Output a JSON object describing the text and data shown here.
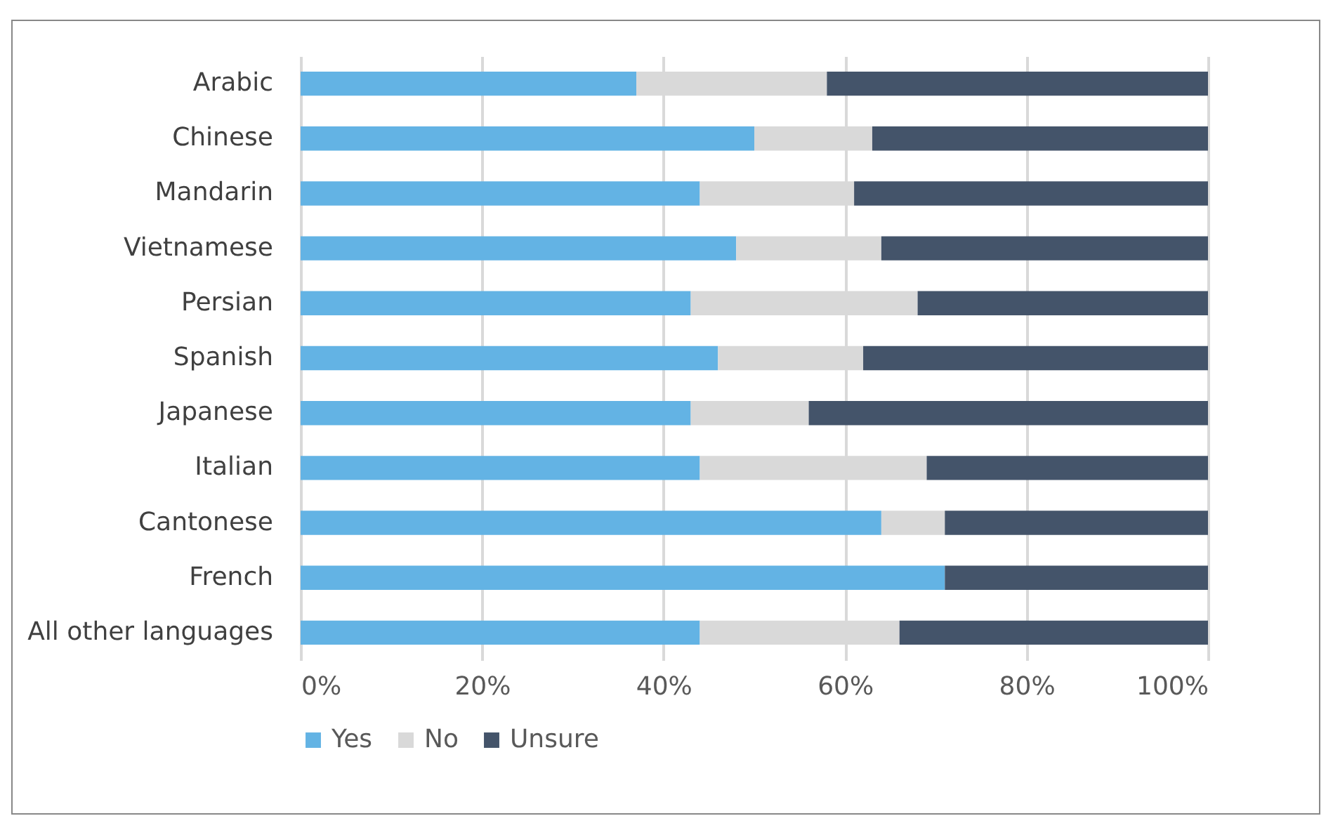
{
  "chart_data": {
    "type": "bar",
    "orientation": "horizontal",
    "stacked": true,
    "categories": [
      "Arabic",
      "Chinese",
      "Mandarin",
      "Vietnamese",
      "Persian",
      "Spanish",
      "Japanese",
      "Italian",
      "Cantonese",
      "French",
      "All other languages"
    ],
    "series": [
      {
        "name": "Yes",
        "color": "#63b3e4",
        "values": [
          37,
          50,
          44,
          48,
          43,
          46,
          43,
          44,
          64,
          71,
          44
        ]
      },
      {
        "name": "No",
        "color": "#d9d9d9",
        "values": [
          21,
          13,
          17,
          16,
          25,
          16,
          13,
          25,
          7,
          0,
          22
        ]
      },
      {
        "name": "Unsure",
        "color": "#44546a",
        "values": [
          42,
          37,
          39,
          36,
          32,
          38,
          44,
          31,
          29,
          29,
          34
        ]
      }
    ],
    "xlim": [
      0,
      100
    ],
    "xticks": [
      {
        "value": 0,
        "label": "0%"
      },
      {
        "value": 20,
        "label": "20%"
      },
      {
        "value": 40,
        "label": "40%"
      },
      {
        "value": 60,
        "label": "60%"
      },
      {
        "value": 80,
        "label": "80%"
      },
      {
        "value": 100,
        "label": "100%"
      }
    ],
    "grid": "x",
    "legend": "bottom"
  }
}
